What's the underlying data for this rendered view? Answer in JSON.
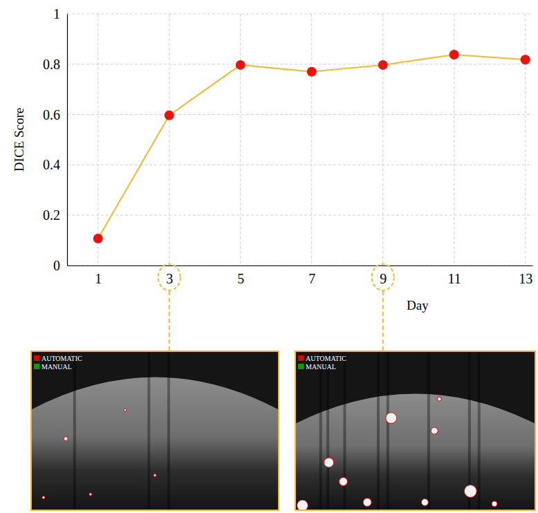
{
  "chart_data": {
    "type": "line",
    "x_label": "Day",
    "y_label": "DICE Score",
    "x": [
      1,
      3,
      5,
      7,
      9,
      11,
      13
    ],
    "series": [
      {
        "values": [
          0.107,
          0.597,
          0.797,
          0.77,
          0.797,
          0.838,
          0.818
        ],
        "color": "#f5b82e",
        "marker": "circle",
        "colors": [
          "#e8150e",
          "#e8150e",
          "#e8150e",
          "#e8150e",
          "#e8150e",
          "#e8150e",
          "#e8150e"
        ]
      }
    ],
    "xlim": [
      0.13,
      13.2
    ],
    "xticks": [
      1,
      3,
      5,
      7,
      9,
      11,
      13
    ],
    "ylim": [
      0,
      1
    ],
    "yticks": [
      0,
      0.2,
      0.4,
      0.6,
      0.8,
      1
    ],
    "grid": true
  },
  "insets": [
    {
      "day": 3,
      "labels": [
        {
          "text": "AUTOMATIC",
          "color": "#e00000"
        },
        {
          "text": "MANUAL",
          "color": "#00a000"
        }
      ]
    },
    {
      "day": 9,
      "labels": [
        {
          "text": "AUTOMATIC",
          "color": "#e00000"
        },
        {
          "text": "MANUAL",
          "color": "#00a000"
        }
      ]
    }
  ]
}
